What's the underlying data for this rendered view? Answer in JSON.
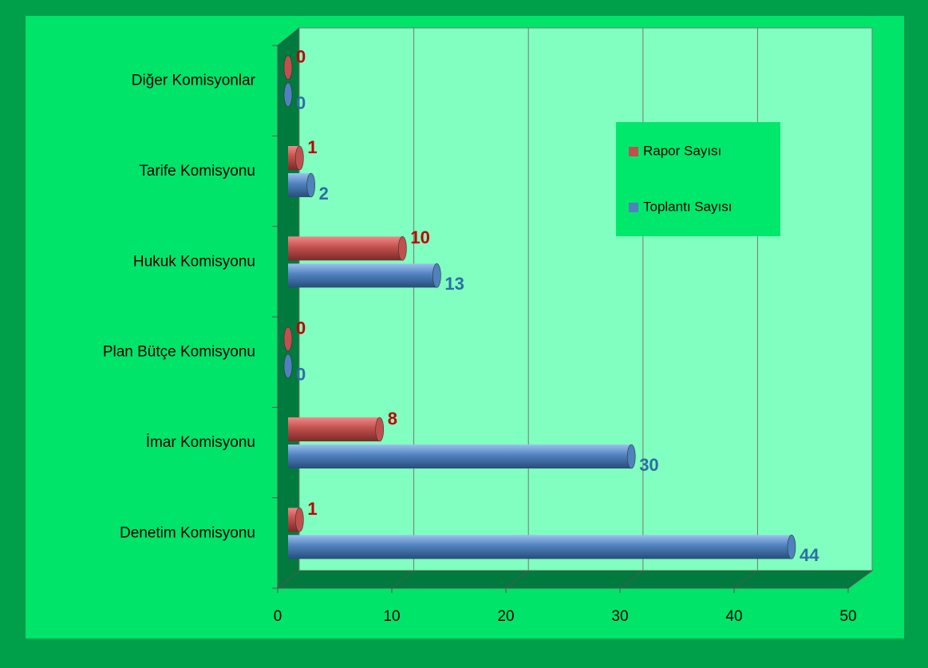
{
  "chart_data": {
    "type": "bar3d",
    "categories": [
      "Diğer Komisyonlar",
      "Tarife Komisyonu",
      "Hukuk Komisyonu",
      "Plan Bütçe Komisyonu",
      "İmar Komisyonu",
      "Denetim Komisyonu"
    ],
    "series": [
      {
        "name": "Rapor Sayısı",
        "color": "#c0504d",
        "values": [
          0,
          1,
          10,
          0,
          8,
          1
        ]
      },
      {
        "name": "Toplantı Sayısı",
        "color": "#4f81bd",
        "values": [
          0,
          2,
          13,
          0,
          30,
          44
        ]
      }
    ],
    "xlim": [
      0,
      50
    ],
    "xticks": [
      0,
      10,
      20,
      30,
      40,
      50
    ],
    "grid": true,
    "legend": "right"
  }
}
